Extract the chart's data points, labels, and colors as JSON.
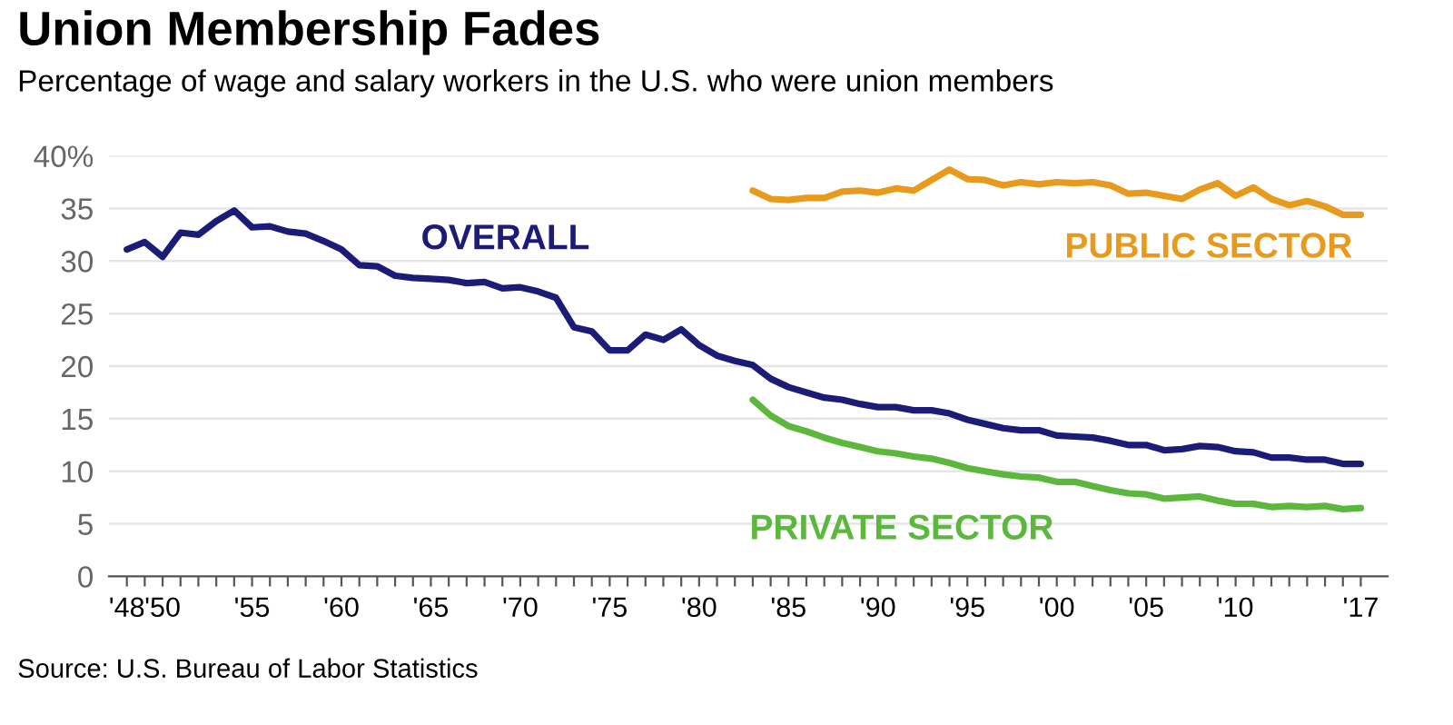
{
  "chart_data": {
    "type": "line",
    "title": "Union Membership Fades",
    "subtitle": "Percentage of wage and salary workers in the U.S. who were union members",
    "x": [
      1948,
      1949,
      1950,
      1951,
      1952,
      1953,
      1954,
      1955,
      1956,
      1957,
      1958,
      1959,
      1960,
      1961,
      1962,
      1963,
      1964,
      1965,
      1966,
      1967,
      1968,
      1969,
      1970,
      1971,
      1972,
      1973,
      1974,
      1975,
      1976,
      1977,
      1978,
      1979,
      1980,
      1981,
      1982,
      1983,
      1984,
      1985,
      1986,
      1987,
      1988,
      1989,
      1990,
      1991,
      1992,
      1993,
      1994,
      1995,
      1996,
      1997,
      1998,
      1999,
      2000,
      2001,
      2002,
      2003,
      2004,
      2005,
      2006,
      2007,
      2008,
      2009,
      2010,
      2011,
      2012,
      2013,
      2014,
      2015,
      2016,
      2017
    ],
    "series": [
      {
        "name": "OVERALL",
        "color": "#1b1b78",
        "values": [
          31.1,
          31.8,
          30.4,
          32.7,
          32.5,
          33.8,
          34.8,
          33.2,
          33.3,
          32.8,
          32.6,
          31.9,
          31.1,
          29.6,
          29.5,
          28.6,
          28.4,
          28.3,
          28.2,
          27.9,
          28.0,
          27.4,
          27.5,
          27.1,
          26.5,
          23.7,
          23.3,
          21.5,
          21.5,
          23.0,
          22.5,
          23.5,
          22.0,
          21.0,
          20.5,
          20.1,
          18.8,
          18.0,
          17.5,
          17.0,
          16.8,
          16.4,
          16.1,
          16.1,
          15.8,
          15.8,
          15.5,
          14.9,
          14.5,
          14.1,
          13.9,
          13.9,
          13.4,
          13.3,
          13.2,
          12.9,
          12.5,
          12.5,
          12.0,
          12.1,
          12.4,
          12.3,
          11.9,
          11.8,
          11.3,
          11.3,
          11.1,
          11.1,
          10.7,
          10.7
        ]
      },
      {
        "name": "PUBLIC SECTOR",
        "color": "#e89a1c",
        "values": [
          null,
          null,
          null,
          null,
          null,
          null,
          null,
          null,
          null,
          null,
          null,
          null,
          null,
          null,
          null,
          null,
          null,
          null,
          null,
          null,
          null,
          null,
          null,
          null,
          null,
          null,
          null,
          null,
          null,
          null,
          null,
          null,
          null,
          null,
          null,
          36.7,
          35.9,
          35.8,
          36.0,
          36.0,
          36.6,
          36.7,
          36.5,
          36.9,
          36.7,
          37.7,
          38.7,
          37.8,
          37.7,
          37.2,
          37.5,
          37.3,
          37.5,
          37.4,
          37.5,
          37.2,
          36.4,
          36.5,
          36.2,
          35.9,
          36.8,
          37.4,
          36.2,
          37.0,
          35.9,
          35.3,
          35.7,
          35.2,
          34.4,
          34.4
        ]
      },
      {
        "name": "PRIVATE SECTOR",
        "color": "#5cb83c",
        "values": [
          null,
          null,
          null,
          null,
          null,
          null,
          null,
          null,
          null,
          null,
          null,
          null,
          null,
          null,
          null,
          null,
          null,
          null,
          null,
          null,
          null,
          null,
          null,
          null,
          null,
          null,
          null,
          null,
          null,
          null,
          null,
          null,
          null,
          null,
          null,
          16.8,
          15.3,
          14.3,
          13.8,
          13.2,
          12.7,
          12.3,
          11.9,
          11.7,
          11.4,
          11.2,
          10.8,
          10.3,
          10.0,
          9.7,
          9.5,
          9.4,
          9.0,
          9.0,
          8.6,
          8.2,
          7.9,
          7.8,
          7.4,
          7.5,
          7.6,
          7.2,
          6.9,
          6.9,
          6.6,
          6.7,
          6.6,
          6.7,
          6.4,
          6.5
        ]
      }
    ],
    "xlim": [
      1947,
      2018.5
    ],
    "xticks": [
      {
        "value": 1948,
        "label": "'48"
      },
      {
        "value": 1949,
        "label": null
      },
      {
        "value": 1950,
        "label": "'50"
      },
      {
        "value": 1951,
        "label": null
      },
      {
        "value": 1952,
        "label": null
      },
      {
        "value": 1953,
        "label": null
      },
      {
        "value": 1954,
        "label": null
      },
      {
        "value": 1955,
        "label": "'55"
      },
      {
        "value": 1956,
        "label": null
      },
      {
        "value": 1957,
        "label": null
      },
      {
        "value": 1958,
        "label": null
      },
      {
        "value": 1959,
        "label": null
      },
      {
        "value": 1960,
        "label": "'60"
      },
      {
        "value": 1961,
        "label": null
      },
      {
        "value": 1962,
        "label": null
      },
      {
        "value": 1963,
        "label": null
      },
      {
        "value": 1964,
        "label": null
      },
      {
        "value": 1965,
        "label": "'65"
      },
      {
        "value": 1966,
        "label": null
      },
      {
        "value": 1967,
        "label": null
      },
      {
        "value": 1968,
        "label": null
      },
      {
        "value": 1969,
        "label": null
      },
      {
        "value": 1970,
        "label": "'70"
      },
      {
        "value": 1971,
        "label": null
      },
      {
        "value": 1972,
        "label": null
      },
      {
        "value": 1973,
        "label": null
      },
      {
        "value": 1974,
        "label": null
      },
      {
        "value": 1975,
        "label": "'75"
      },
      {
        "value": 1976,
        "label": null
      },
      {
        "value": 1977,
        "label": null
      },
      {
        "value": 1978,
        "label": null
      },
      {
        "value": 1979,
        "label": null
      },
      {
        "value": 1980,
        "label": "'80"
      },
      {
        "value": 1981,
        "label": null
      },
      {
        "value": 1982,
        "label": null
      },
      {
        "value": 1983,
        "label": null
      },
      {
        "value": 1984,
        "label": null
      },
      {
        "value": 1985,
        "label": "'85"
      },
      {
        "value": 1986,
        "label": null
      },
      {
        "value": 1987,
        "label": null
      },
      {
        "value": 1988,
        "label": null
      },
      {
        "value": 1989,
        "label": null
      },
      {
        "value": 1990,
        "label": "'90"
      },
      {
        "value": 1991,
        "label": null
      },
      {
        "value": 1992,
        "label": null
      },
      {
        "value": 1993,
        "label": null
      },
      {
        "value": 1994,
        "label": null
      },
      {
        "value": 1995,
        "label": "'95"
      },
      {
        "value": 1996,
        "label": null
      },
      {
        "value": 1997,
        "label": null
      },
      {
        "value": 1998,
        "label": null
      },
      {
        "value": 1999,
        "label": null
      },
      {
        "value": 2000,
        "label": "'00"
      },
      {
        "value": 2001,
        "label": null
      },
      {
        "value": 2002,
        "label": null
      },
      {
        "value": 2003,
        "label": null
      },
      {
        "value": 2004,
        "label": null
      },
      {
        "value": 2005,
        "label": "'05"
      },
      {
        "value": 2006,
        "label": null
      },
      {
        "value": 2007,
        "label": null
      },
      {
        "value": 2008,
        "label": null
      },
      {
        "value": 2009,
        "label": null
      },
      {
        "value": 2010,
        "label": "'10"
      },
      {
        "value": 2011,
        "label": null
      },
      {
        "value": 2012,
        "label": null
      },
      {
        "value": 2013,
        "label": null
      },
      {
        "value": 2014,
        "label": null
      },
      {
        "value": 2015,
        "label": null
      },
      {
        "value": 2016,
        "label": null
      },
      {
        "value": 2017,
        "label": "'17"
      }
    ],
    "ylim": [
      0,
      40
    ],
    "yticks": [
      0,
      5,
      10,
      15,
      20,
      25,
      30,
      35,
      {
        "value": 40,
        "label": "40%"
      }
    ],
    "grid": "y",
    "legend": false,
    "annotations": [
      "Source: U.S. Bureau of Labor Statistics"
    ]
  }
}
